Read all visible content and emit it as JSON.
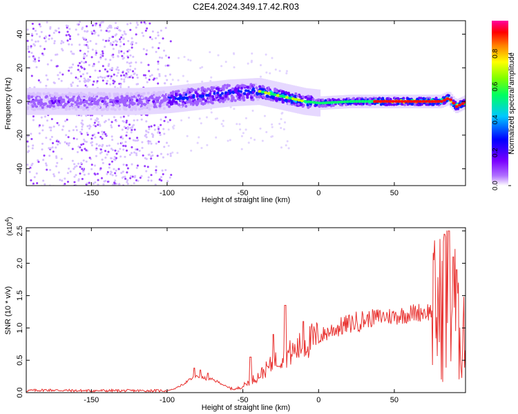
{
  "title": "C2E4.2024.349.17.42.R03",
  "colors": {
    "signal_line": "#e8312f",
    "axis": "#000000",
    "background": "#ffffff"
  },
  "chart_data": [
    {
      "type": "heatmap",
      "name": "spectrogram",
      "xlabel": "Height of straight line (km)",
      "ylabel": "Frequency (Hz)",
      "xlim": [
        -193,
        97
      ],
      "ylim": [
        -50,
        48
      ],
      "x_ticks": [
        -150,
        -100,
        -50,
        0,
        50
      ],
      "y_ticks": [
        -40,
        -20,
        0,
        20,
        40
      ],
      "ridge": {
        "description_points_x": [
          -193,
          -150,
          -120,
          -100,
          -80,
          -60,
          -40,
          -30,
          -20,
          -10,
          0,
          20,
          40,
          60,
          80,
          85,
          90,
          97
        ],
        "frequency_hz": [
          0,
          0,
          0,
          1,
          3,
          5,
          6,
          4,
          2,
          0,
          -1,
          0,
          0,
          0,
          0,
          2,
          -3,
          0
        ]
      },
      "colorbar": {
        "label": "Normalized spectral amplitude",
        "range": [
          0,
          1
        ],
        "ticks": [
          "0.0",
          "0.2",
          "0.4",
          "0.6",
          "0.8"
        ],
        "colors": [
          "#ffffff",
          "#8000ff",
          "#0000ff",
          "#00ffff",
          "#00ff00",
          "#ffff00",
          "#ff8000",
          "#ff0000",
          "#ff00ff"
        ]
      }
    },
    {
      "type": "line",
      "name": "snr",
      "xlabel": "Height of straight line (km)",
      "ylabel": "SNR (10 * v/v)",
      "multiplier_label": "(x10",
      "multiplier_exp": "4",
      "xlim": [
        -193,
        97
      ],
      "ylim": [
        0,
        2.55
      ],
      "x_ticks": [
        -150,
        -100,
        -50,
        0,
        50
      ],
      "y_ticks": [
        "0.0",
        "0.5",
        "1.0",
        "1.5",
        "2.0",
        "2.5"
      ],
      "series": [
        {
          "x": [
            -193,
            -180,
            -160,
            -140,
            -120,
            -100,
            -95,
            -90,
            -85,
            -80,
            -75,
            -70,
            -65,
            -60,
            -55,
            -50,
            -45,
            -40,
            -35,
            -30,
            -25,
            -20,
            -15,
            -10,
            -5,
            0,
            5,
            10,
            15,
            20,
            25,
            30,
            35,
            40,
            45,
            50,
            55,
            60,
            65,
            70,
            75,
            80,
            83,
            86,
            88,
            90,
            92,
            94,
            97
          ],
          "y": [
            0.03,
            0.04,
            0.03,
            0.03,
            0.03,
            0.03,
            0.06,
            0.12,
            0.2,
            0.25,
            0.22,
            0.2,
            0.15,
            0.08,
            0.05,
            0.1,
            0.18,
            0.25,
            0.35,
            0.45,
            0.55,
            0.6,
            0.65,
            0.75,
            0.8,
            0.85,
            0.92,
            0.98,
            1.02,
            1.06,
            1.1,
            1.12,
            1.15,
            1.17,
            1.18,
            1.18,
            1.2,
            1.22,
            1.24,
            1.25,
            1.26,
            1.3,
            1.45,
            1.6,
            1.4,
            1.3,
            0.9,
            1.0,
            1.1
          ],
          "peaks_x": [
            -82,
            -78,
            -73,
            -45,
            -30,
            -22,
            -10,
            83,
            86,
            89,
            91
          ],
          "peaks_y": [
            0.38,
            0.35,
            0.3,
            0.55,
            0.9,
            1.35,
            1.1,
            2.45,
            2.5,
            2.1,
            1.9
          ]
        }
      ]
    }
  ]
}
